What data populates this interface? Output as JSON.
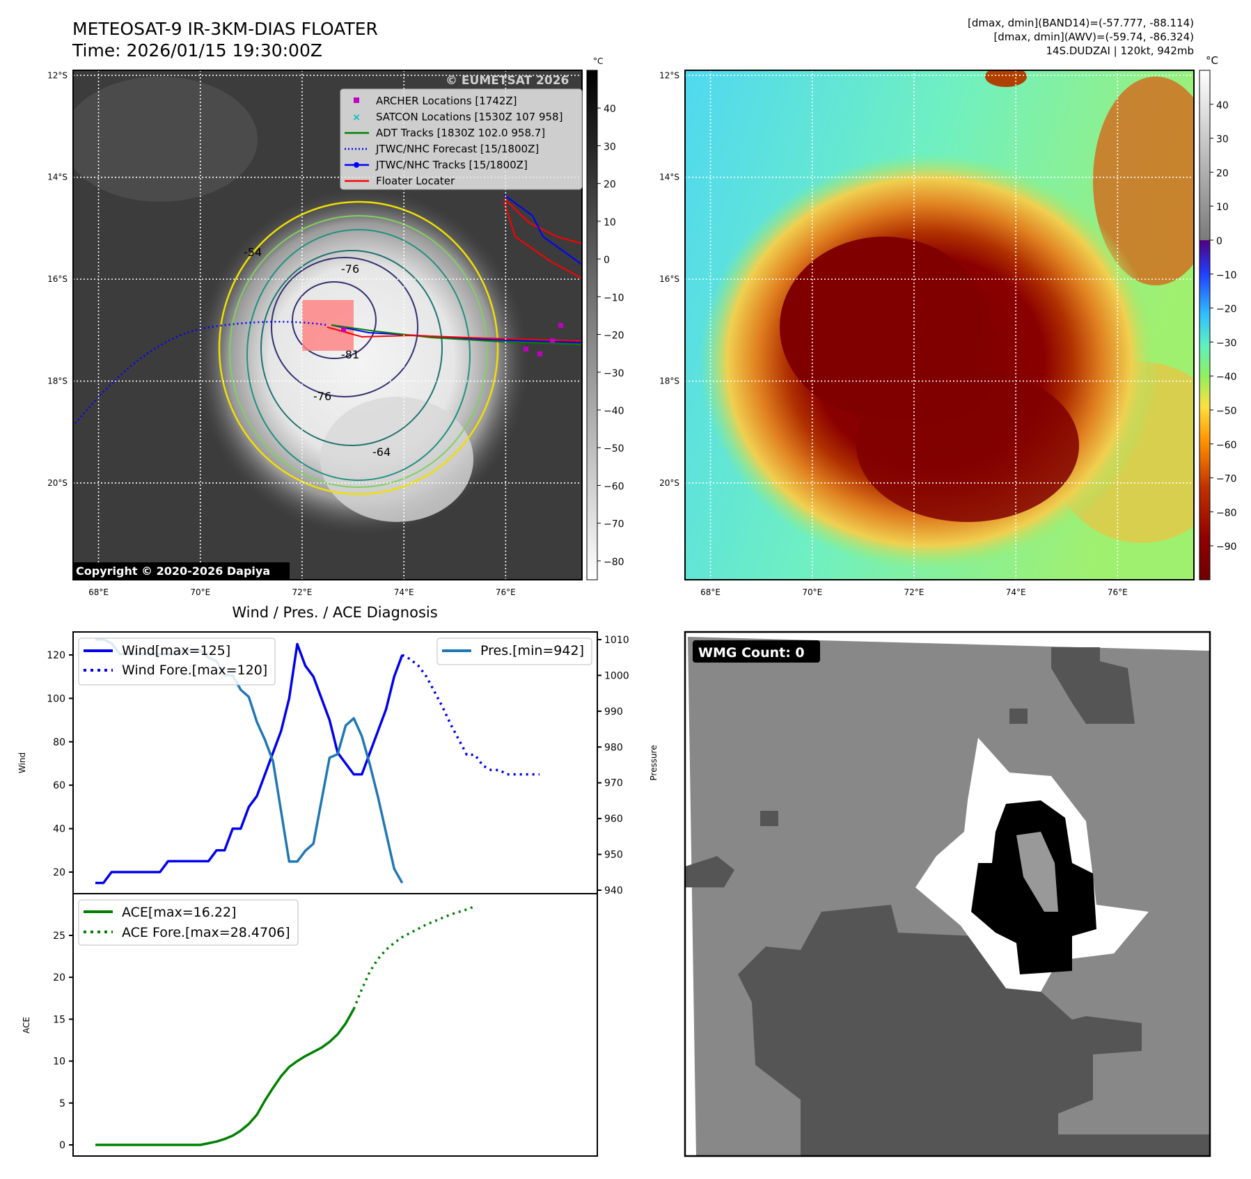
{
  "header": {
    "title_line1": "METEOSAT-9 IR-3KM-DIAS FLOATER",
    "title_line2": "Time: 2026/01/15 19:30:00Z",
    "info_line1": "[dmax, dmin](BAND14)=(-57.777, -88.114)",
    "info_line2": "[dmax, dmin](AWV)=(-59.74, -86.324)",
    "info_line3": "14S.DUDZAI | 120kt, 942mb"
  },
  "ir_map": {
    "lon_labels": [
      "68°E",
      "70°E",
      "72°E",
      "74°E",
      "76°E"
    ],
    "lon_values": [
      68,
      70,
      72,
      74,
      76
    ],
    "lat_labels": [
      "12°S",
      "14°S",
      "16°S",
      "18°S",
      "20°S"
    ],
    "lat_values": [
      -12,
      -14,
      -16,
      -18,
      -20
    ],
    "lon_range": [
      67.5,
      77.5
    ],
    "lat_range": [
      -21.9,
      -11.9
    ],
    "watermark": "© EUMETSAT 2026",
    "copyright": "Copyright © 2020-2026 Dapiya",
    "contour_labels": [
      "-54",
      "-76",
      "-81",
      "-76",
      "-64"
    ],
    "legend": [
      {
        "label": "ARCHER Locations [1742Z]",
        "color": "#c000c0",
        "style": "square"
      },
      {
        "label": "SATCON Locations [1530Z 107 958]",
        "color": "#00c0c0",
        "style": "x"
      },
      {
        "label": "ADT Tracks [1830Z 102.0 958.7]",
        "color": "#008000",
        "style": "line"
      },
      {
        "label": "JTWC/NHC Forecast [15/1800Z]",
        "color": "#0000ff",
        "style": "dotted"
      },
      {
        "label": "JTWC/NHC Tracks [15/1800Z]",
        "color": "#0000ff",
        "style": "line-dot"
      },
      {
        "label": "Floater Locater",
        "color": "#ff0000",
        "style": "line"
      }
    ],
    "colorbar": {
      "unit": "°C",
      "ticks": [
        "40",
        "30",
        "20",
        "10",
        "0",
        "−10",
        "−20",
        "−30",
        "−40",
        "−50",
        "−60",
        "−70",
        "−80"
      ],
      "tick_values": [
        40,
        30,
        20,
        10,
        0,
        -10,
        -20,
        -30,
        -40,
        -50,
        -60,
        -70,
        -80
      ],
      "range": [
        50,
        -85
      ]
    }
  },
  "awv_map": {
    "colorbar": {
      "unit": "°C",
      "ticks": [
        "40",
        "30",
        "20",
        "10",
        "0",
        "−10",
        "−20",
        "−30",
        "−40",
        "−50",
        "−60",
        "−70",
        "−80",
        "−90"
      ],
      "tick_values": [
        40,
        30,
        20,
        10,
        0,
        -10,
        -20,
        -30,
        -40,
        -50,
        -60,
        -70,
        -80,
        -90
      ],
      "range": [
        50,
        -100
      ]
    }
  },
  "wmg": {
    "badge": "WMG Count: 0"
  },
  "chart_data": [
    {
      "type": "line",
      "title": "Wind / Pres. / ACE Diagnosis",
      "ylabel": "Wind",
      "y2label": "Pressure",
      "ylim": [
        8.5,
        130
      ],
      "y2lim": [
        938,
        1012
      ],
      "yticks": [
        20,
        40,
        60,
        80,
        100,
        120
      ],
      "ytick_labels": [
        "20",
        "40",
        "60",
        "80",
        "100",
        "120"
      ],
      "y2ticks": [
        940,
        950,
        960,
        970,
        980,
        990,
        1000,
        1010
      ],
      "y2tick_labels": [
        "940",
        "950",
        "960",
        "970",
        "980",
        "990",
        "1000",
        "1010"
      ],
      "series": [
        {
          "name": "Wind[max=125]",
          "color": "#0000ee",
          "style": "solid",
          "x0": 0,
          "values": [
            15,
            15,
            20,
            20,
            20,
            20,
            20,
            20,
            20,
            25,
            25,
            25,
            25,
            25,
            25,
            30,
            30,
            40,
            40,
            50,
            55,
            65,
            75,
            85,
            100,
            125,
            115,
            110,
            100,
            90,
            75,
            70,
            65,
            65,
            75,
            85,
            95,
            110,
            120
          ]
        },
        {
          "name": "Wind Fore.[max=120]",
          "color": "#0000ee",
          "style": "dotted",
          "x0": 38,
          "values": [
            120,
            118,
            115,
            110,
            103,
            96,
            88,
            81,
            74,
            74,
            69,
            67,
            67,
            65,
            65,
            65,
            65,
            65
          ]
        },
        {
          "name": "Pres.[min=942]",
          "color": "#1f77b4",
          "style": "solid",
          "x0": 0,
          "axis": "right",
          "values": [
            1010,
            1010,
            1009,
            1006,
            1006,
            1006,
            1006,
            1006,
            1006,
            1006,
            1006,
            1007,
            1007,
            1007,
            1005,
            1004,
            1000,
            1000,
            996,
            994,
            987,
            982,
            976,
            962,
            948,
            948,
            951,
            953,
            965,
            977,
            978,
            986,
            988,
            983,
            975,
            966,
            956,
            946,
            942
          ]
        }
      ]
    },
    {
      "type": "line",
      "ylabel": "ACE",
      "ylim": [
        -2.2,
        30
      ],
      "yticks": [
        0,
        5,
        10,
        15,
        20,
        25
      ],
      "ytick_labels": [
        "0",
        "5",
        "10",
        "15",
        "20",
        "25"
      ],
      "series": [
        {
          "name": "ACE[max=16.22]",
          "color": "#008000",
          "style": "solid",
          "x0": 0,
          "values": [
            0,
            0,
            0,
            0,
            0,
            0,
            0,
            0,
            0,
            0,
            0,
            0,
            0,
            0,
            0.2,
            0.4,
            0.7,
            1.1,
            1.7,
            2.5,
            3.6,
            5.3,
            6.8,
            8.2,
            9.3,
            10.0,
            10.6,
            11.1,
            11.6,
            12.3,
            13.2,
            14.5,
            16.22
          ]
        },
        {
          "name": "ACE Fore.[max=28.4706]",
          "color": "#008000",
          "style": "dotted",
          "x0": 32,
          "values": [
            16.22,
            18.6,
            20.7,
            22.2,
            23.3,
            24.1,
            24.8,
            25.3,
            25.8,
            26.3,
            26.7,
            27.1,
            27.5,
            27.8,
            28.1,
            28.4706
          ]
        }
      ]
    }
  ]
}
